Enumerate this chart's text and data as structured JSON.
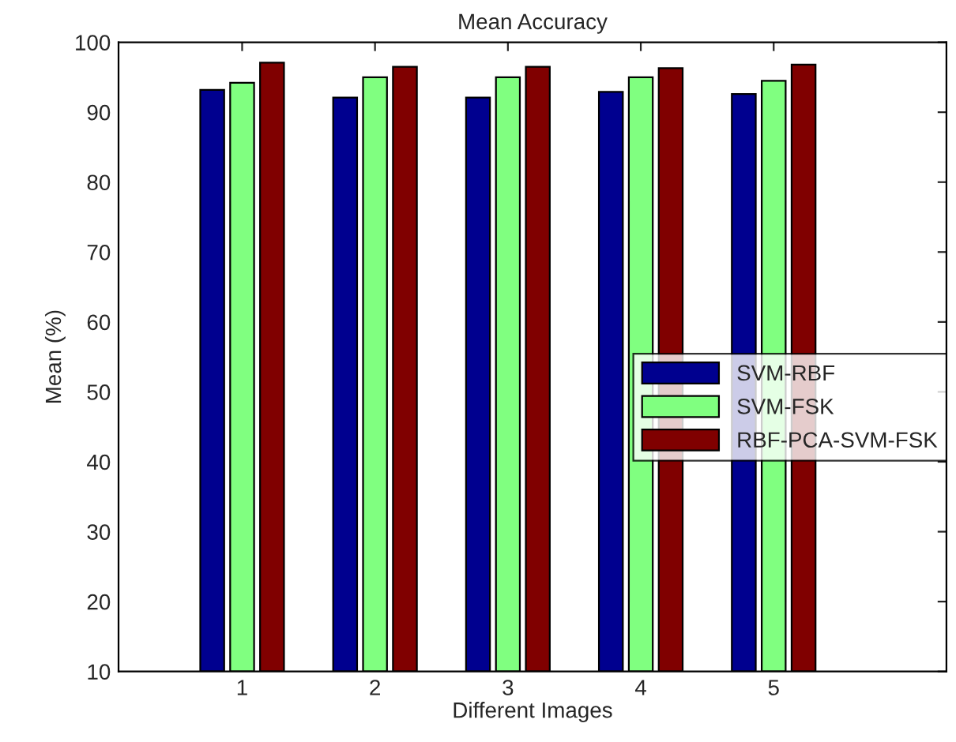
{
  "chart_data": {
    "type": "bar",
    "title": "Mean Accuracy",
    "xlabel": "Different Images",
    "ylabel": "Mean (%)",
    "categories": [
      "1",
      "2",
      "3",
      "4",
      "5"
    ],
    "series": [
      {
        "name": "SVM-RBF",
        "color": "#00008f",
        "values": [
          93.2,
          92.1,
          92.1,
          92.9,
          92.6
        ]
      },
      {
        "name": "SVM-FSK",
        "color": "#80ff80",
        "values": [
          94.2,
          95.0,
          95.0,
          95.0,
          94.5
        ]
      },
      {
        "name": "RBF-PCA-SVM-FSK",
        "color": "#800000",
        "values": [
          97.1,
          96.5,
          96.5,
          96.3,
          96.8
        ]
      }
    ],
    "ylim": [
      10,
      100
    ],
    "yticks": [
      10,
      20,
      30,
      40,
      50,
      60,
      70,
      80,
      90,
      100
    ],
    "grid": false,
    "legend": "right"
  }
}
